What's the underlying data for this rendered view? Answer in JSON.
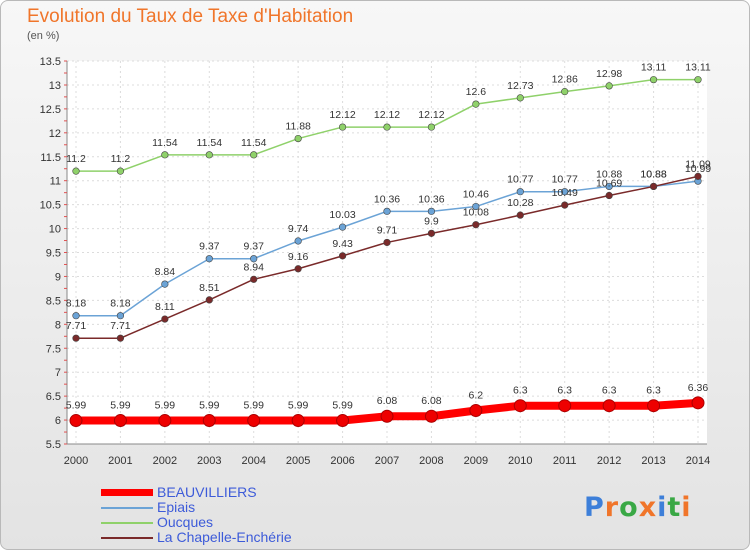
{
  "header": {
    "title": "Evolution du Taux de Taxe d'Habitation",
    "subtitle": "(en %)"
  },
  "logo": {
    "text": "Proxiti",
    "colors": [
      "#3d7fd9",
      "#f0752a",
      "#39a845",
      "#f0752a",
      "#3d7fd9",
      "#39a845",
      "#f0752a"
    ]
  },
  "chart_data": {
    "type": "line",
    "title": "Evolution du Taux de Taxe d'Habitation",
    "ylabel": "(en %)",
    "xlabel": "",
    "x": [
      "2000",
      "2001",
      "2002",
      "2003",
      "2004",
      "2005",
      "2006",
      "2007",
      "2008",
      "2009",
      "2010",
      "2011",
      "2012",
      "2013",
      "2014"
    ],
    "ylim": [
      5.5,
      13.5
    ],
    "yticks": [
      "5.5",
      "6",
      "6.5",
      "7",
      "7.5",
      "8",
      "8.5",
      "9",
      "9.5",
      "10",
      "10.5",
      "11",
      "11.5",
      "12",
      "12.5",
      "13",
      "13.5"
    ],
    "grid": true,
    "legend_position": "bottom-left",
    "series": [
      {
        "name": "BEAUVILLIERS",
        "color": "#ff0000",
        "values": [
          5.99,
          5.99,
          5.99,
          5.99,
          5.99,
          5.99,
          5.99,
          6.08,
          6.08,
          6.2,
          6.3,
          6.3,
          6.3,
          6.3,
          6.36
        ],
        "labels": [
          "5.99",
          "5.99",
          "5.99",
          "5.99",
          "5.99",
          "5.99",
          "5.99",
          "6.08",
          "6.08",
          "6.2",
          "6.3",
          "6.3",
          "6.3",
          "6.3",
          "6.36"
        ]
      },
      {
        "name": "Epiais",
        "color": "#6ba3d6",
        "values": [
          8.18,
          8.18,
          8.84,
          9.37,
          9.37,
          9.74,
          10.03,
          10.36,
          10.36,
          10.46,
          10.77,
          10.77,
          10.88,
          10.88,
          10.99
        ],
        "labels": [
          "8.18",
          "8.18",
          "8.84",
          "9.37",
          "9.37",
          "9.74",
          "10.03",
          "10.36",
          "10.36",
          "10.46",
          "10.77",
          "10.77",
          "10.88",
          "10.88",
          "10.99"
        ]
      },
      {
        "name": "Oucques",
        "color": "#8fd16a",
        "values": [
          11.2,
          11.2,
          11.54,
          11.54,
          11.54,
          11.88,
          12.12,
          12.12,
          12.12,
          12.6,
          12.73,
          12.86,
          12.98,
          13.11,
          13.11
        ],
        "labels": [
          "11.2",
          "11.2",
          "11.54",
          "11.54",
          "11.54",
          "11.88",
          "12.12",
          "12.12",
          "12.12",
          "12.6",
          "12.73",
          "12.86",
          "12.98",
          "13.11",
          "13.11"
        ]
      },
      {
        "name": "La Chapelle-Enchérie",
        "color": "#7a2a2a",
        "values": [
          7.71,
          7.71,
          8.11,
          8.51,
          8.94,
          9.16,
          9.43,
          9.71,
          9.9,
          10.08,
          10.28,
          10.49,
          10.69,
          10.88,
          11.09
        ],
        "labels": [
          "7.71",
          "7.71",
          "8.11",
          "8.51",
          "8.94",
          "9.16",
          "9.43",
          "9.71",
          "9.9",
          "10.08",
          "10.28",
          "10.49",
          "10.69",
          "10.88",
          "11.09"
        ]
      }
    ]
  }
}
